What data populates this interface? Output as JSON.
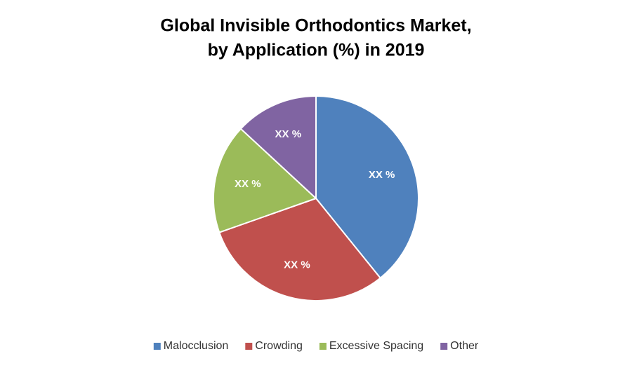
{
  "chart_data": {
    "type": "pie",
    "title": [
      "Global Invisible Orthodontics Market,",
      "by Application (%) in 2019"
    ],
    "categories": [
      "Malocclusion",
      "Crowding",
      "Excessive Spacing",
      "Other"
    ],
    "values": [
      39.2,
      30.4,
      17.3,
      13.1
    ],
    "value_labels": [
      "XX %",
      "XX %",
      "XX %",
      "XX %"
    ],
    "colors": [
      "#4f81bd",
      "#c0504d",
      "#9bbb59",
      "#8064a2"
    ],
    "legend": "bottom"
  }
}
